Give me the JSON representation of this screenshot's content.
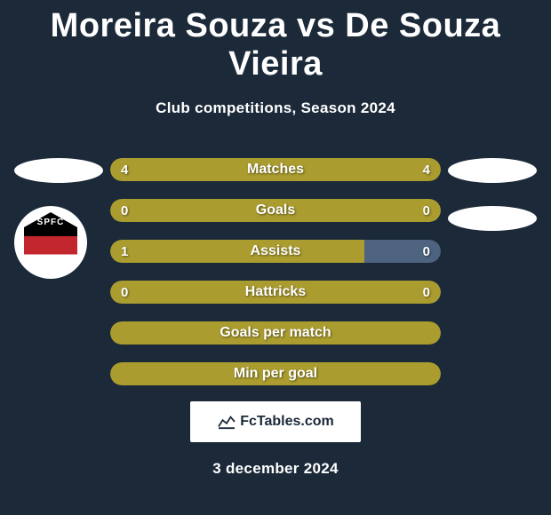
{
  "title": "Moreira Souza vs De Souza Vieira",
  "subtitle": "Club competitions, Season 2024",
  "date": "3 december 2024",
  "attribution": "FcTables.com",
  "colors": {
    "background": "#1b2939",
    "bar_primary": "#aa9c2f",
    "bar_secondary": "#4d6380",
    "text": "#ffffff"
  },
  "stats": [
    {
      "label": "Matches",
      "left_value": "4",
      "right_value": "4",
      "left_pct": 50,
      "right_pct": 50,
      "left_color": "#aa9c2f",
      "right_color": "#aa9c2f"
    },
    {
      "label": "Goals",
      "left_value": "0",
      "right_value": "0",
      "left_pct": 50,
      "right_pct": 50,
      "left_color": "#aa9c2f",
      "right_color": "#aa9c2f"
    },
    {
      "label": "Assists",
      "left_value": "1",
      "right_value": "0",
      "left_pct": 77,
      "right_pct": 23,
      "left_color": "#aa9c2f",
      "right_color": "#4d6380"
    },
    {
      "label": "Hattricks",
      "left_value": "0",
      "right_value": "0",
      "left_pct": 50,
      "right_pct": 50,
      "left_color": "#aa9c2f",
      "right_color": "#aa9c2f"
    },
    {
      "label": "Goals per match",
      "left_value": "",
      "right_value": "",
      "left_pct": 100,
      "right_pct": 0,
      "left_color": "#aa9c2f",
      "right_color": "#aa9c2f"
    },
    {
      "label": "Min per goal",
      "left_value": "",
      "right_value": "",
      "left_pct": 100,
      "right_pct": 0,
      "left_color": "#aa9c2f",
      "right_color": "#aa9c2f"
    }
  ],
  "club_left_code": "SPFC"
}
